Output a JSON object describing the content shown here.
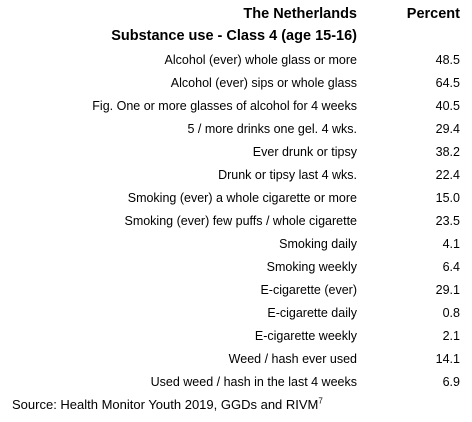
{
  "header": {
    "country": "The Netherlands",
    "value_header": "Percent",
    "subtitle": "Substance use - Class 4 (age 15-16)"
  },
  "rows": [
    {
      "label": "Alcohol (ever) whole glass or more",
      "value": "48.5"
    },
    {
      "label": "Alcohol (ever) sips or whole glass",
      "value": "64.5"
    },
    {
      "label": "Fig. One or more glasses of alcohol for 4 weeks",
      "value": "40.5"
    },
    {
      "label": "5 / more drinks one gel. 4 wks.",
      "value": "29.4"
    },
    {
      "label": "Ever drunk or tipsy",
      "value": "38.2"
    },
    {
      "label": "Drunk or tipsy last 4 wks.",
      "value": "22.4"
    },
    {
      "label": "Smoking (ever) a whole cigarette or more",
      "value": "15.0"
    },
    {
      "label": "Smoking (ever) few puffs / whole cigarette",
      "value": "23.5"
    },
    {
      "label": "Smoking daily",
      "value": "4.1"
    },
    {
      "label": "Smoking weekly",
      "value": "6.4"
    },
    {
      "label": "E-cigarette (ever)",
      "value": "29.1"
    },
    {
      "label": "E-cigarette daily",
      "value": "0.8"
    },
    {
      "label": "E-cigarette weekly",
      "value": "2.1"
    },
    {
      "label": "Weed / hash ever used",
      "value": "14.1"
    },
    {
      "label": "Used weed / hash in the last 4 weeks",
      "value": "6.9"
    }
  ],
  "footer": {
    "source_text": "Source: Health Monitor Youth 2019, GGDs and RIVM",
    "source_ref": "7"
  }
}
